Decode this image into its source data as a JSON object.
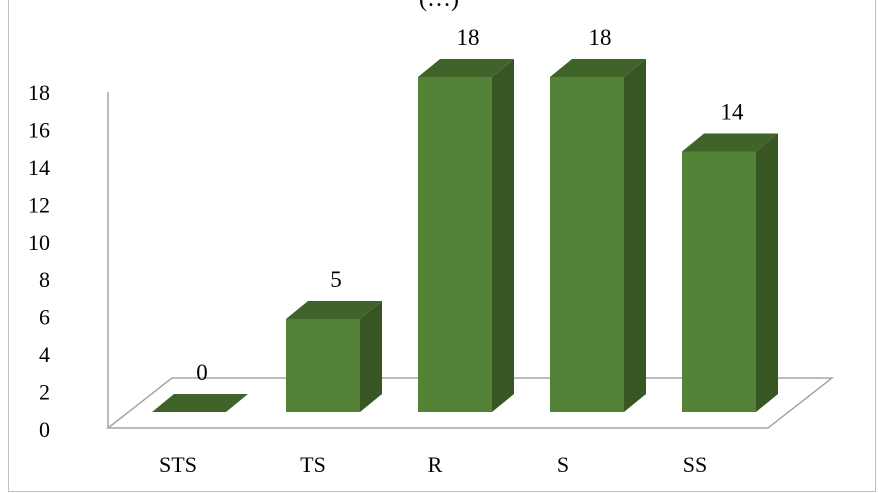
{
  "chart_data": {
    "type": "bar",
    "title_fragment": "(…)",
    "categories": [
      "STS",
      "TS",
      "R",
      "S",
      "SS"
    ],
    "values": [
      0,
      5,
      18,
      18,
      14
    ],
    "data_labels": [
      "0",
      "5",
      "18",
      "18",
      "14"
    ],
    "ylim": [
      0,
      18
    ],
    "yticks": [
      "0",
      "2",
      "4",
      "6",
      "8",
      "10",
      "12",
      "14",
      "16",
      "18"
    ],
    "xlabel": "",
    "ylabel": "",
    "grid": false,
    "legend": "none",
    "colors": {
      "bar_front": "#538135",
      "bar_side": "#375623",
      "bar_top": "#3f6328",
      "floor": "#a6a6a6",
      "axis": "#808080"
    }
  }
}
